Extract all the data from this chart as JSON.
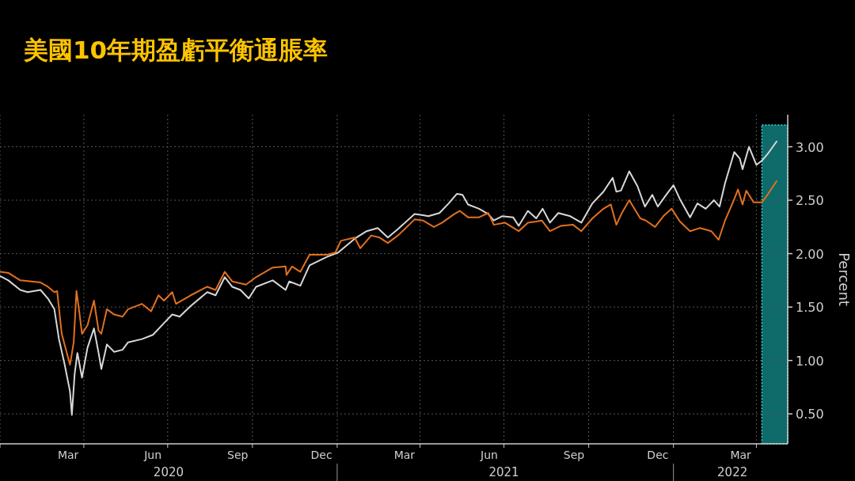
{
  "chart_data": {
    "type": "line",
    "title": "美國10年期盈虧平衡通脹率",
    "ylabel": "Percent",
    "xlim": [
      "2020-01-01",
      "2022-05-05"
    ],
    "ylim": [
      0.22,
      3.3
    ],
    "xticks": [
      {
        "value": "2020-01-01",
        "label": null
      },
      {
        "value": "2020-04-01",
        "label": null
      },
      {
        "value": "2020-07-01",
        "label": null
      },
      {
        "value": "2020-10-01",
        "label": null
      },
      {
        "value": "2021-01-01",
        "label": null
      },
      {
        "value": "2021-04-01",
        "label": null
      },
      {
        "value": "2021-07-01",
        "label": null
      },
      {
        "value": "2021-10-01",
        "label": null
      },
      {
        "value": "2022-01-01",
        "label": null
      },
      {
        "value": "2022-04-01",
        "label": null
      },
      {
        "value": "2020-03-15",
        "label": "Mar"
      },
      {
        "value": "2020-06-15",
        "label": "Jun"
      },
      {
        "value": "2020-09-15",
        "label": "Sep"
      },
      {
        "value": "2020-12-15",
        "label": "Dec"
      },
      {
        "value": "2021-03-15",
        "label": "Mar"
      },
      {
        "value": "2021-06-15",
        "label": "Jun"
      },
      {
        "value": "2021-09-15",
        "label": "Sep"
      },
      {
        "value": "2021-12-15",
        "label": "Dec"
      },
      {
        "value": "2022-03-15",
        "label": "Mar"
      }
    ],
    "x2lim": [
      "2020-01-01",
      "2022-05-05"
    ],
    "x2ticks": [
      {
        "value": "2021-01-01",
        "label": null
      },
      {
        "value": "2022-01-01",
        "label": null
      },
      {
        "value": "2020-07-02",
        "label": "2020"
      },
      {
        "value": "2021-07-01",
        "label": "2021"
      },
      {
        "value": "2022-03-06",
        "label": "2022"
      }
    ],
    "yticks": [
      {
        "value": 0.5,
        "label": "0.50"
      },
      {
        "value": 1,
        "label": "1.00"
      },
      {
        "value": 1.5,
        "label": "1.50"
      },
      {
        "value": 2,
        "label": "2.00"
      },
      {
        "value": 2.5,
        "label": "2.50"
      },
      {
        "value": 3,
        "label": "3.00"
      }
    ],
    "grid": true,
    "bands": [
      {
        "axis": "x",
        "from": "2022-04-07",
        "to": "2022-05-05",
        "color": "#0f6a6a"
      }
    ],
    "series": [
      {
        "color": "#d8d8d8",
        "x": [
          "2020-01-01",
          "2020-01-10",
          "2020-01-23",
          "2020-01-31",
          "2020-02-14",
          "2020-02-22",
          "2020-02-29",
          "2020-03-05",
          "2020-03-11",
          "2020-03-17",
          "2020-03-19",
          "2020-03-22",
          "2020-03-25",
          "2020-03-30",
          "2020-04-05",
          "2020-04-12",
          "2020-04-17",
          "2020-04-20",
          "2020-04-26",
          "2020-05-04",
          "2020-05-13",
          "2020-05-19",
          "2020-06-03",
          "2020-06-15",
          "2020-06-27",
          "2020-07-06",
          "2020-07-14",
          "2020-07-26",
          "2020-08-13",
          "2020-08-22",
          "2020-09-01",
          "2020-09-09",
          "2020-09-18",
          "2020-09-27",
          "2020-10-05",
          "2020-10-23",
          "2020-11-06",
          "2020-11-10",
          "2020-11-22",
          "2020-12-02",
          "2020-12-21",
          "2021-01-02",
          "2021-01-20",
          "2021-02-02",
          "2021-02-14",
          "2021-02-25",
          "2021-03-08",
          "2021-03-26",
          "2021-04-04",
          "2021-04-10",
          "2021-04-22",
          "2021-05-02",
          "2021-05-11",
          "2021-05-17",
          "2021-05-23",
          "2021-06-04",
          "2021-06-14",
          "2021-06-20",
          "2021-06-29",
          "2021-07-11",
          "2021-07-17",
          "2021-07-27",
          "2021-08-05",
          "2021-08-12",
          "2021-08-20",
          "2021-08-29",
          "2021-09-11",
          "2021-09-23",
          "2021-10-05",
          "2021-10-17",
          "2021-10-27",
          "2021-10-31",
          "2021-11-05",
          "2021-11-14",
          "2021-11-23",
          "2021-12-01",
          "2021-12-09",
          "2021-12-15",
          "2021-12-24",
          "2022-01-01",
          "2022-01-08",
          "2022-01-19",
          "2022-01-27",
          "2022-02-05",
          "2022-02-14",
          "2022-02-20",
          "2022-02-26",
          "2022-03-08",
          "2022-03-14",
          "2022-03-17",
          "2022-03-24",
          "2022-04-01",
          "2022-04-07",
          "2022-04-13",
          "2022-04-23"
        ],
        "values": [
          1.79,
          1.75,
          1.66,
          1.64,
          1.66,
          1.58,
          1.48,
          1.2,
          0.97,
          0.71,
          0.49,
          0.87,
          1.07,
          0.84,
          1.12,
          1.3,
          1.07,
          0.92,
          1.15,
          1.08,
          1.1,
          1.17,
          1.2,
          1.24,
          1.35,
          1.43,
          1.41,
          1.51,
          1.64,
          1.61,
          1.78,
          1.69,
          1.66,
          1.58,
          1.69,
          1.75,
          1.66,
          1.74,
          1.7,
          1.89,
          1.97,
          2.01,
          2.14,
          2.21,
          2.24,
          2.15,
          2.23,
          2.37,
          2.36,
          2.35,
          2.38,
          2.47,
          2.56,
          2.55,
          2.46,
          2.42,
          2.37,
          2.31,
          2.35,
          2.34,
          2.26,
          2.4,
          2.33,
          2.42,
          2.29,
          2.38,
          2.35,
          2.29,
          2.47,
          2.58,
          2.71,
          2.58,
          2.59,
          2.77,
          2.63,
          2.44,
          2.55,
          2.44,
          2.55,
          2.64,
          2.51,
          2.34,
          2.47,
          2.42,
          2.5,
          2.44,
          2.66,
          2.95,
          2.89,
          2.79,
          3.0,
          2.83,
          2.87,
          2.93,
          3.05
        ]
      },
      {
        "color": "#e2701e",
        "x": [
          "2020-01-01",
          "2020-01-10",
          "2020-01-23",
          "2020-02-14",
          "2020-02-22",
          "2020-02-29",
          "2020-03-03",
          "2020-03-08",
          "2020-03-12",
          "2020-03-17",
          "2020-03-21",
          "2020-03-24",
          "2020-03-27",
          "2020-03-30",
          "2020-04-05",
          "2020-04-12",
          "2020-04-17",
          "2020-04-20",
          "2020-04-26",
          "2020-05-04",
          "2020-05-13",
          "2020-05-19",
          "2020-06-03",
          "2020-06-13",
          "2020-06-21",
          "2020-06-27",
          "2020-07-06",
          "2020-07-10",
          "2020-07-26",
          "2020-08-13",
          "2020-08-22",
          "2020-09-01",
          "2020-09-09",
          "2020-09-24",
          "2020-10-05",
          "2020-10-23",
          "2020-11-06",
          "2020-11-07",
          "2020-11-13",
          "2020-11-22",
          "2020-12-02",
          "2020-12-21",
          "2020-12-30",
          "2021-01-05",
          "2021-01-20",
          "2021-01-26",
          "2021-02-07",
          "2021-02-16",
          "2021-02-25",
          "2021-03-08",
          "2021-03-26",
          "2021-04-04",
          "2021-04-16",
          "2021-04-25",
          "2021-05-08",
          "2021-05-14",
          "2021-05-23",
          "2021-06-04",
          "2021-06-14",
          "2021-06-20",
          "2021-07-02",
          "2021-07-17",
          "2021-07-27",
          "2021-08-05",
          "2021-08-11",
          "2021-08-20",
          "2021-09-01",
          "2021-09-14",
          "2021-09-23",
          "2021-10-05",
          "2021-10-17",
          "2021-10-25",
          "2021-10-31",
          "2021-11-06",
          "2021-11-14",
          "2021-11-26",
          "2021-12-02",
          "2021-12-12",
          "2021-12-21",
          "2021-12-30",
          "2022-01-08",
          "2022-01-19",
          "2022-01-30",
          "2022-02-11",
          "2022-02-19",
          "2022-02-26",
          "2022-03-08",
          "2022-03-12",
          "2022-03-17",
          "2022-03-21",
          "2022-03-29",
          "2022-04-07",
          "2022-04-13",
          "2022-04-23"
        ],
        "values": [
          1.83,
          1.82,
          1.75,
          1.73,
          1.69,
          1.64,
          1.65,
          1.25,
          1.12,
          0.96,
          1.17,
          1.65,
          1.46,
          1.25,
          1.33,
          1.56,
          1.28,
          1.25,
          1.48,
          1.43,
          1.41,
          1.48,
          1.53,
          1.46,
          1.61,
          1.56,
          1.64,
          1.53,
          1.61,
          1.69,
          1.66,
          1.83,
          1.74,
          1.71,
          1.78,
          1.87,
          1.88,
          1.8,
          1.88,
          1.83,
          1.99,
          1.99,
          2.01,
          2.12,
          2.15,
          2.05,
          2.17,
          2.15,
          2.1,
          2.17,
          2.32,
          2.31,
          2.25,
          2.29,
          2.37,
          2.4,
          2.34,
          2.34,
          2.38,
          2.27,
          2.29,
          2.21,
          2.29,
          2.3,
          2.31,
          2.21,
          2.26,
          2.27,
          2.21,
          2.33,
          2.42,
          2.46,
          2.27,
          2.38,
          2.5,
          2.33,
          2.31,
          2.25,
          2.35,
          2.42,
          2.3,
          2.21,
          2.24,
          2.21,
          2.13,
          2.31,
          2.51,
          2.6,
          2.46,
          2.59,
          2.48,
          2.48,
          2.55,
          2.68
        ]
      }
    ]
  }
}
